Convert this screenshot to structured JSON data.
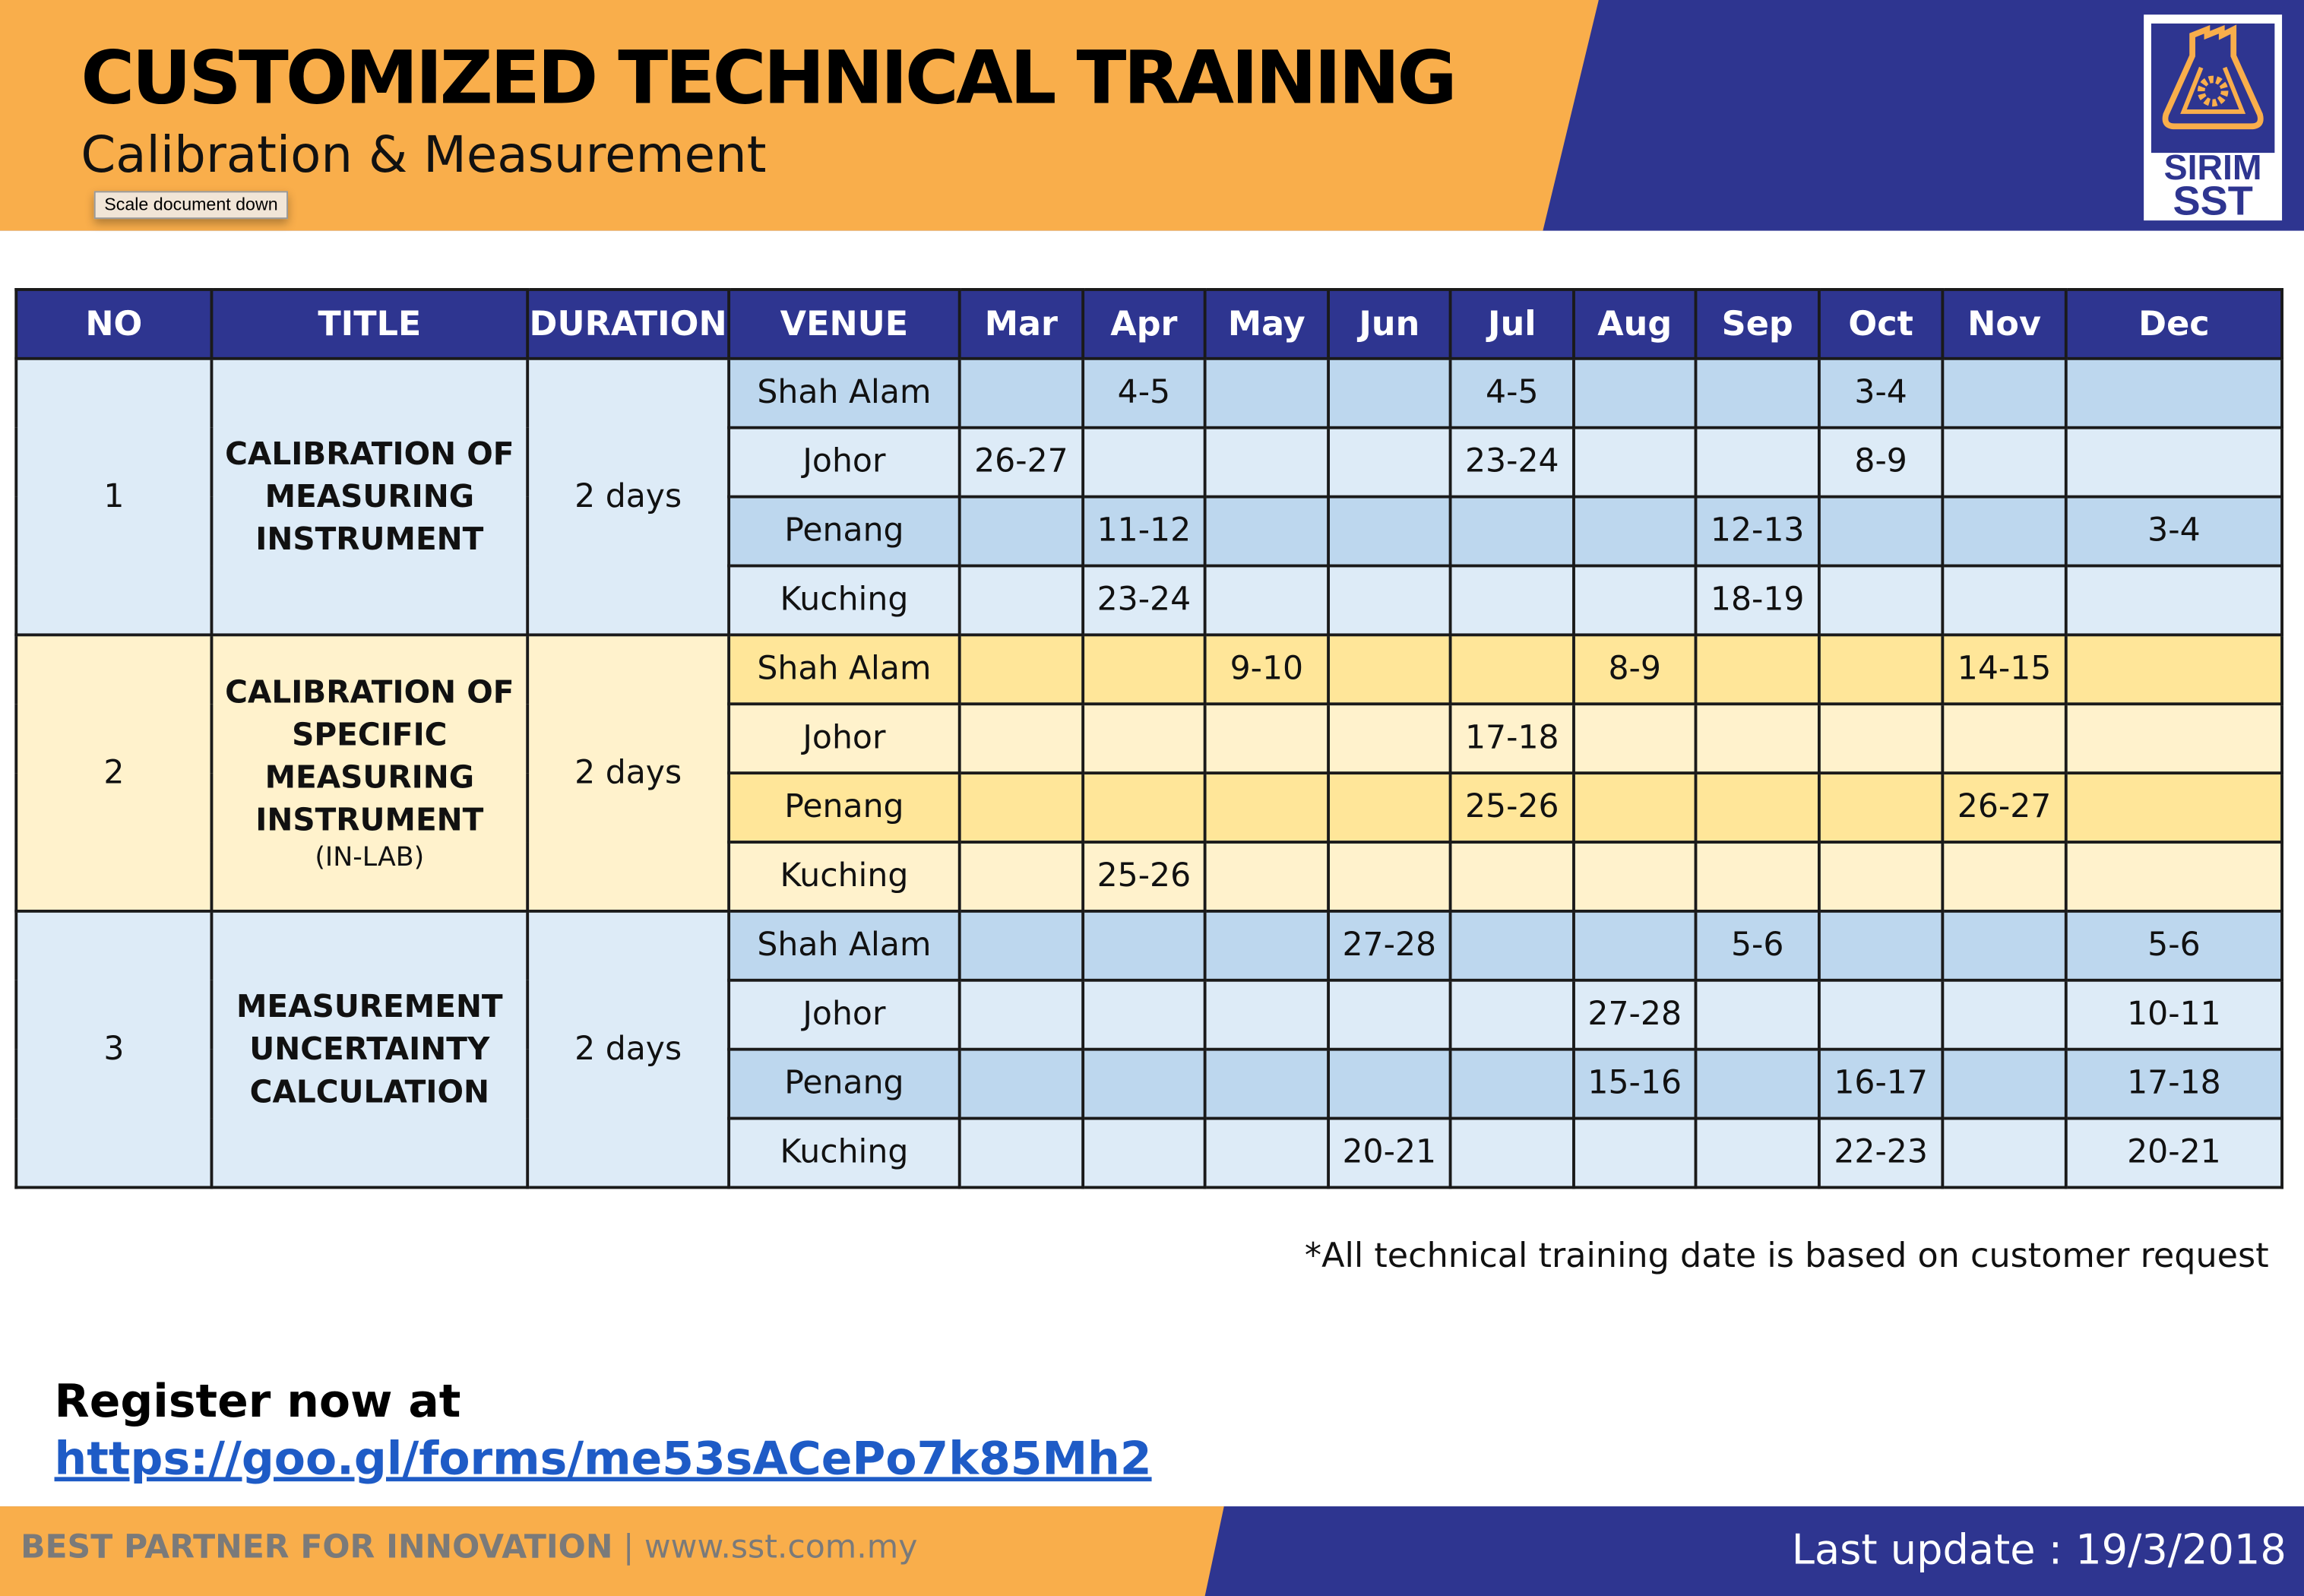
{
  "header": {
    "title": "CUSTOMIZED TECHNICAL TRAINING",
    "subtitle": "Calibration & Measurement",
    "tooltip": "Scale document down",
    "logo_text": [
      "SIRIM",
      "SST"
    ]
  },
  "colors": {
    "navy": "#2e3590",
    "orange": "#f9ae4b",
    "blue_dark": "#bdd7ee",
    "blue_light": "#ddebf7",
    "yellow_dark": "#ffe699",
    "yellow_light": "#fff2cc"
  },
  "table": {
    "headers": [
      "NO",
      "TITLE",
      "DURATION",
      "VENUE",
      "Mar",
      "Apr",
      "May",
      "Jun",
      "Jul",
      "Aug",
      "Sep",
      "Oct",
      "Nov",
      "Dec"
    ],
    "groups": [
      {
        "no": "1",
        "title": "CALIBRATION OF MEASURING INSTRUMENT",
        "title_sub": "",
        "duration": "2 days",
        "rows": [
          {
            "venue": "Shah Alam",
            "dates": [
              "",
              "4-5",
              "",
              "",
              "4-5",
              "",
              "",
              "3-4",
              "",
              ""
            ]
          },
          {
            "venue": "Johor",
            "dates": [
              "26-27",
              "",
              "",
              "",
              "23-24",
              "",
              "",
              "8-9",
              "",
              ""
            ]
          },
          {
            "venue": "Penang",
            "dates": [
              "",
              "11-12",
              "",
              "",
              "",
              "",
              "12-13",
              "",
              "",
              "3-4"
            ]
          },
          {
            "venue": "Kuching",
            "dates": [
              "",
              "23-24",
              "",
              "",
              "",
              "",
              "18-19",
              "",
              "",
              ""
            ]
          }
        ]
      },
      {
        "no": "2",
        "title": "CALIBRATION OF SPECIFIC MEASURING INSTRUMENT",
        "title_sub": "(IN-LAB)",
        "duration": "2 days",
        "rows": [
          {
            "venue": "Shah Alam",
            "dates": [
              "",
              "",
              "9-10",
              "",
              "",
              "8-9",
              "",
              "",
              "14-15",
              ""
            ]
          },
          {
            "venue": "Johor",
            "dates": [
              "",
              "",
              "",
              "",
              "17-18",
              "",
              "",
              "",
              "",
              ""
            ]
          },
          {
            "venue": "Penang",
            "dates": [
              "",
              "",
              "",
              "",
              "25-26",
              "",
              "",
              "",
              "26-27",
              ""
            ]
          },
          {
            "venue": "Kuching",
            "dates": [
              "",
              "25-26",
              "",
              "",
              "",
              "",
              "",
              "",
              "",
              ""
            ]
          }
        ]
      },
      {
        "no": "3",
        "title": "MEASUREMENT UNCERTAINTY CALCULATION",
        "title_sub": "",
        "duration": "2 days",
        "rows": [
          {
            "venue": "Shah Alam",
            "dates": [
              "",
              "",
              "",
              "27-28",
              "",
              "",
              "5-6",
              "",
              "",
              "5-6"
            ]
          },
          {
            "venue": "Johor",
            "dates": [
              "",
              "",
              "",
              "",
              "",
              "27-28",
              "",
              "",
              "",
              "10-11"
            ]
          },
          {
            "venue": "Penang",
            "dates": [
              "",
              "",
              "",
              "",
              "",
              "15-16",
              "",
              "16-17",
              "",
              "17-18"
            ]
          },
          {
            "venue": "Kuching",
            "dates": [
              "",
              "",
              "",
              "20-21",
              "",
              "",
              "",
              "22-23",
              "",
              "20-21"
            ]
          }
        ]
      }
    ]
  },
  "note": "*All technical training date is based on customer request",
  "register": {
    "label": "Register now at",
    "link": "https://goo.gl/forms/me53sACePo7k85Mh2"
  },
  "footer": {
    "tagline": "BEST PARTNER FOR INNOVATION",
    "separator": "|",
    "website": "www.sst.com.my",
    "last_update": "Last update : 19/3/2018"
  }
}
